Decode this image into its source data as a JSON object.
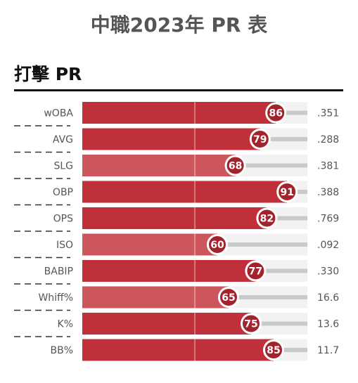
{
  "header": {
    "title": "中職2023年 PR 表"
  },
  "section": {
    "title": "打擊 PR"
  },
  "colors": {
    "bar_high": "#c0303a",
    "bar_low": "#cd565d",
    "track": "#c9c9c9",
    "background_track": "#f2f2f2",
    "badge": "#a3222c"
  },
  "chart_data": {
    "type": "bar",
    "orientation": "horizontal",
    "title": "打擊 PR",
    "xlim": [
      0,
      100
    ],
    "categories": [
      "wOBA",
      "AVG",
      "SLG",
      "OBP",
      "OPS",
      "ISO",
      "BABIP",
      "Whiff%",
      "K%",
      "BB%"
    ],
    "values": [
      86,
      79,
      68,
      91,
      82,
      60,
      77,
      65,
      75,
      85
    ],
    "stat_values": [
      ".351",
      ".288",
      ".381",
      ".388",
      ".769",
      ".092",
      ".330",
      "16.6",
      "13.6",
      "11.7"
    ]
  }
}
